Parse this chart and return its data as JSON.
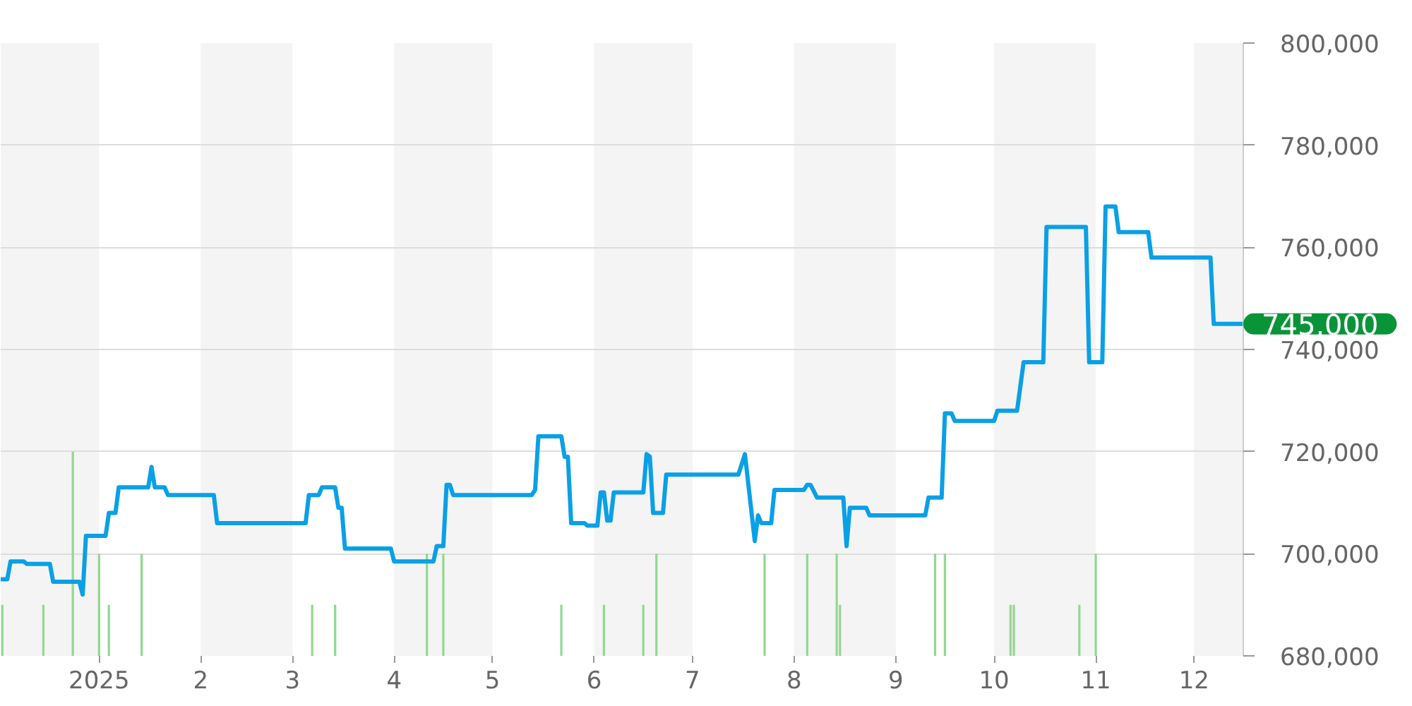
{
  "chart_data": {
    "type": "line",
    "series": [
      {
        "type": "bar",
        "color": "#92d892",
        "x": [
          "2024-12-02T12:00",
          "2024-12-15",
          "2024-12-24",
          "2025-01-01",
          "2025-01-04",
          "2025-01-14",
          "2025-03-07",
          "2025-03-14",
          "2025-04-11",
          "2025-04-16",
          "2025-05-22",
          "2025-06-04",
          "2025-06-16",
          "2025-06-20",
          "2025-07-23",
          "2025-08-05",
          "2025-08-14",
          "2025-08-15",
          "2025-09-13",
          "2025-09-16",
          "2025-10-06",
          "2025-10-07",
          "2025-10-27",
          "2025-11-01"
        ],
        "values": [
          690000,
          690000,
          720000,
          700000,
          690000,
          700000,
          690000,
          690000,
          700000,
          700000,
          690000,
          690000,
          690000,
          700000,
          700000,
          700000,
          700000,
          690000,
          700000,
          700000,
          690000,
          690000,
          690000,
          700000
        ]
      },
      {
        "color": "#0aa0e6",
        "x": [
          "2024-12-02",
          "2024-12-04",
          "2024-12-05",
          "2024-12-09",
          "2024-12-10",
          "2024-12-17",
          "2024-12-18",
          "2024-12-26",
          "2024-12-27",
          "2024-12-28",
          "2025-01-03",
          "2025-01-04",
          "2025-01-06",
          "2025-01-07",
          "2025-01-16",
          "2025-01-17",
          "2025-01-18",
          "2025-01-21",
          "2025-01-22",
          "2025-02-05",
          "2025-02-06",
          "2025-03-05",
          "2025-03-06",
          "2025-03-09",
          "2025-03-10",
          "2025-03-14",
          "2025-03-15",
          "2025-03-16",
          "2025-03-17",
          "2025-03-31",
          "2025-04-01",
          "2025-04-13",
          "2025-04-14",
          "2025-04-16",
          "2025-04-17",
          "2025-04-18",
          "2025-04-19",
          "2025-05-13",
          "2025-05-14",
          "2025-05-15",
          "2025-05-22",
          "2025-05-23",
          "2025-05-24",
          "2025-05-25",
          "2025-05-29",
          "2025-05-30",
          "2025-06-02",
          "2025-06-03",
          "2025-06-04",
          "2025-06-05",
          "2025-06-06",
          "2025-06-07",
          "2025-06-16",
          "2025-06-17",
          "2025-06-18",
          "2025-06-19",
          "2025-06-22",
          "2025-06-23",
          "2025-07-15",
          "2025-07-17",
          "2025-07-20",
          "2025-07-21",
          "2025-07-22",
          "2025-07-25",
          "2025-07-26",
          "2025-08-04",
          "2025-08-05",
          "2025-08-06",
          "2025-08-08",
          "2025-08-16",
          "2025-08-17",
          "2025-08-18",
          "2025-08-23",
          "2025-08-24",
          "2025-09-10",
          "2025-09-11",
          "2025-09-15",
          "2025-09-16",
          "2025-09-18",
          "2025-09-19",
          "2025-10-01",
          "2025-10-02",
          "2025-10-08",
          "2025-10-10",
          "2025-10-16",
          "2025-10-17",
          "2025-10-29",
          "2025-10-30",
          "2025-11-03",
          "2025-11-04",
          "2025-11-07",
          "2025-11-08",
          "2025-11-17",
          "2025-11-18",
          "2025-12-06",
          "2025-12-07",
          "2025-12-16"
        ],
        "values": [
          695000,
          695000,
          698500,
          698500,
          698000,
          698000,
          694500,
          694500,
          692000,
          703500,
          703500,
          708000,
          708000,
          713000,
          713000,
          717000,
          713000,
          713000,
          711500,
          711500,
          706000,
          706000,
          711500,
          711500,
          713000,
          713000,
          709000,
          709000,
          701000,
          701000,
          698500,
          698500,
          701500,
          701500,
          713500,
          713500,
          711500,
          711500,
          712500,
          723000,
          723000,
          719000,
          719000,
          706000,
          706000,
          705500,
          705500,
          712000,
          712000,
          706500,
          706500,
          712000,
          712000,
          719500,
          719000,
          708000,
          708000,
          715500,
          715500,
          719500,
          702500,
          707500,
          706000,
          706000,
          712500,
          712500,
          713500,
          713500,
          711000,
          711000,
          701500,
          709000,
          709000,
          707500,
          707500,
          711000,
          711000,
          727500,
          727500,
          726000,
          726000,
          728000,
          728000,
          737500,
          737500,
          764000,
          764000,
          737500,
          737500,
          768000,
          768000,
          763000,
          763000,
          758000,
          758000,
          745000,
          745000
        ]
      }
    ],
    "line_style": "solid",
    "xlim": [
      "2024-12-02",
      "2025-12-16"
    ],
    "xticks": [
      {
        "value": "2025-01-01",
        "label": "2025"
      },
      {
        "value": "2025-02-01",
        "label": "2"
      },
      {
        "value": "2025-03-01",
        "label": "3"
      },
      {
        "value": "2025-04-01",
        "label": "4"
      },
      {
        "value": "2025-05-01",
        "label": "5"
      },
      {
        "value": "2025-06-01",
        "label": "6"
      },
      {
        "value": "2025-07-01",
        "label": "7"
      },
      {
        "value": "2025-08-01",
        "label": "8"
      },
      {
        "value": "2025-09-01",
        "label": "9"
      },
      {
        "value": "2025-10-01",
        "label": "10"
      },
      {
        "value": "2025-11-01",
        "label": "11"
      },
      {
        "value": "2025-12-01",
        "label": "12"
      }
    ],
    "ylim": [
      680000,
      800000
    ],
    "yticks": [
      {
        "value": 680000,
        "label": "680,000"
      },
      {
        "value": 700000,
        "label": "700,000"
      },
      {
        "value": 720000,
        "label": "720,000"
      },
      {
        "value": 740000,
        "label": "740,000"
      },
      {
        "value": 760000,
        "label": "760,000"
      },
      {
        "value": 780000,
        "label": "780,000"
      },
      {
        "value": 800000,
        "label": "800,000"
      }
    ],
    "grid": "y",
    "bands": [
      {
        "axis": "x",
        "from": "2024-12-02",
        "to": "2025-01-01",
        "color": "#f4f4f4"
      },
      {
        "axis": "x",
        "from": "2025-02-01",
        "to": "2025-03-01",
        "color": "#f4f4f4"
      },
      {
        "axis": "x",
        "from": "2025-04-01",
        "to": "2025-05-01",
        "color": "#f4f4f4"
      },
      {
        "axis": "x",
        "from": "2025-06-01",
        "to": "2025-07-01",
        "color": "#f4f4f4"
      },
      {
        "axis": "x",
        "from": "2025-08-01",
        "to": "2025-09-01",
        "color": "#f4f4f4"
      },
      {
        "axis": "x",
        "from": "2025-10-01",
        "to": "2025-11-01",
        "color": "#f4f4f4"
      },
      {
        "axis": "x",
        "from": "2025-12-01",
        "to": "2025-12-16",
        "color": "#f4f4f4"
      }
    ],
    "annotations": [
      {
        "text": "745,000",
        "x": "2025-12-16",
        "y": 745000
      }
    ]
  }
}
